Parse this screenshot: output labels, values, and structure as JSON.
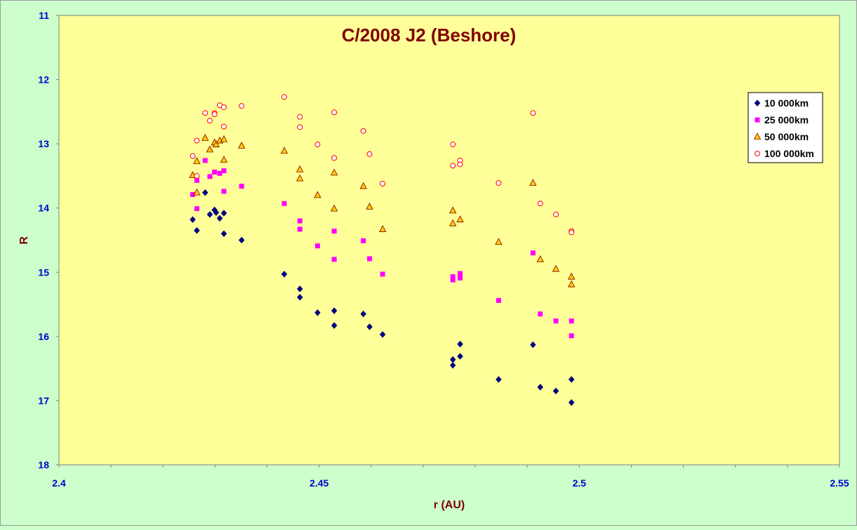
{
  "chart_data": {
    "type": "scatter",
    "title": "C/2008 J2 (Beshore)",
    "xlabel": "r (AU)",
    "ylabel": "R",
    "xlim": [
      2.4,
      2.55
    ],
    "ylim": [
      11,
      18
    ],
    "y_inverted": true,
    "x_ticks": [
      "2.4",
      "2.45",
      "2.5",
      "2.55"
    ],
    "y_ticks": [
      "11",
      "12",
      "13",
      "14",
      "15",
      "16",
      "17",
      "18"
    ],
    "grid": false,
    "legend_position": "top-right",
    "plot_background": "#ffff99",
    "series": [
      {
        "name": "10 000km",
        "marker": "diamond",
        "color": "#000080",
        "points": [
          [
            2.4257,
            14.18
          ],
          [
            2.4265,
            14.35
          ],
          [
            2.4281,
            13.76
          ],
          [
            2.429,
            14.1
          ],
          [
            2.4299,
            14.03
          ],
          [
            2.4302,
            14.07
          ],
          [
            2.4309,
            14.16
          ],
          [
            2.4317,
            14.08
          ],
          [
            2.4317,
            14.4
          ],
          [
            2.4351,
            14.5
          ],
          [
            2.4433,
            15.03
          ],
          [
            2.4463,
            15.26
          ],
          [
            2.4463,
            15.39
          ],
          [
            2.4497,
            15.63
          ],
          [
            2.4529,
            15.6
          ],
          [
            2.4529,
            15.83
          ],
          [
            2.4585,
            15.65
          ],
          [
            2.4597,
            15.85
          ],
          [
            2.4622,
            15.97
          ],
          [
            2.4757,
            16.36
          ],
          [
            2.4757,
            16.45
          ],
          [
            2.4771,
            16.12
          ],
          [
            2.4771,
            16.31
          ],
          [
            2.4845,
            16.67
          ],
          [
            2.4911,
            16.13
          ],
          [
            2.4925,
            16.79
          ],
          [
            2.4955,
            16.85
          ],
          [
            2.4985,
            16.67
          ],
          [
            2.4985,
            17.03
          ]
        ]
      },
      {
        "name": "25 000km",
        "marker": "square",
        "color": "#ff00ff",
        "points": [
          [
            2.4257,
            13.79
          ],
          [
            2.4265,
            13.57
          ],
          [
            2.4265,
            14.01
          ],
          [
            2.4281,
            13.26
          ],
          [
            2.429,
            13.51
          ],
          [
            2.4299,
            13.44
          ],
          [
            2.4309,
            13.46
          ],
          [
            2.4317,
            13.42
          ],
          [
            2.4317,
            13.74
          ],
          [
            2.4351,
            13.66
          ],
          [
            2.4433,
            13.93
          ],
          [
            2.4463,
            14.2
          ],
          [
            2.4463,
            14.33
          ],
          [
            2.4497,
            14.59
          ],
          [
            2.4529,
            14.36
          ],
          [
            2.4529,
            14.8
          ],
          [
            2.4585,
            14.51
          ],
          [
            2.4597,
            14.79
          ],
          [
            2.4622,
            15.03
          ],
          [
            2.4757,
            15.07
          ],
          [
            2.4757,
            15.12
          ],
          [
            2.4771,
            15.02
          ],
          [
            2.4771,
            15.09
          ],
          [
            2.4845,
            15.44
          ],
          [
            2.4911,
            14.7
          ],
          [
            2.4925,
            15.65
          ],
          [
            2.4955,
            15.76
          ],
          [
            2.4985,
            15.76
          ],
          [
            2.4985,
            15.99
          ]
        ]
      },
      {
        "name": "50 000km",
        "marker": "triangle",
        "color": "#ffcc00",
        "points": [
          [
            2.4257,
            13.49
          ],
          [
            2.4265,
            13.27
          ],
          [
            2.4265,
            13.76
          ],
          [
            2.4281,
            12.91
          ],
          [
            2.429,
            13.09
          ],
          [
            2.4299,
            12.98
          ],
          [
            2.4302,
            13.01
          ],
          [
            2.4309,
            12.95
          ],
          [
            2.4317,
            12.93
          ],
          [
            2.4317,
            13.25
          ],
          [
            2.4351,
            13.03
          ],
          [
            2.4433,
            13.11
          ],
          [
            2.4463,
            13.4
          ],
          [
            2.4463,
            13.54
          ],
          [
            2.4497,
            13.8
          ],
          [
            2.4529,
            13.45
          ],
          [
            2.4529,
            14.01
          ],
          [
            2.4585,
            13.66
          ],
          [
            2.4597,
            13.98
          ],
          [
            2.4622,
            14.33
          ],
          [
            2.4757,
            14.04
          ],
          [
            2.4757,
            14.24
          ],
          [
            2.4771,
            14.18
          ],
          [
            2.4845,
            14.53
          ],
          [
            2.4911,
            13.61
          ],
          [
            2.4925,
            14.8
          ],
          [
            2.4955,
            14.95
          ],
          [
            2.4985,
            15.07
          ],
          [
            2.4985,
            15.19
          ]
        ]
      },
      {
        "name": "100 000km",
        "marker": "circle",
        "color": "#ff0000",
        "points": [
          [
            2.4257,
            13.19
          ],
          [
            2.4265,
            12.95
          ],
          [
            2.4265,
            13.5
          ],
          [
            2.4281,
            12.52
          ],
          [
            2.429,
            12.64
          ],
          [
            2.4299,
            12.52
          ],
          [
            2.4299,
            12.54
          ],
          [
            2.4309,
            12.4
          ],
          [
            2.4317,
            12.43
          ],
          [
            2.4317,
            12.73
          ],
          [
            2.4351,
            12.41
          ],
          [
            2.4433,
            12.27
          ],
          [
            2.4463,
            12.58
          ],
          [
            2.4463,
            12.74
          ],
          [
            2.4497,
            13.01
          ],
          [
            2.4529,
            12.51
          ],
          [
            2.4529,
            13.22
          ],
          [
            2.4585,
            12.8
          ],
          [
            2.4597,
            13.16
          ],
          [
            2.4622,
            13.62
          ],
          [
            2.4757,
            13.01
          ],
          [
            2.4757,
            13.34
          ],
          [
            2.4771,
            13.26
          ],
          [
            2.4771,
            13.32
          ],
          [
            2.4845,
            13.61
          ],
          [
            2.4911,
            12.52
          ],
          [
            2.4925,
            13.93
          ],
          [
            2.4955,
            14.1
          ],
          [
            2.4985,
            14.36
          ],
          [
            2.4985,
            14.38
          ]
        ]
      }
    ]
  }
}
